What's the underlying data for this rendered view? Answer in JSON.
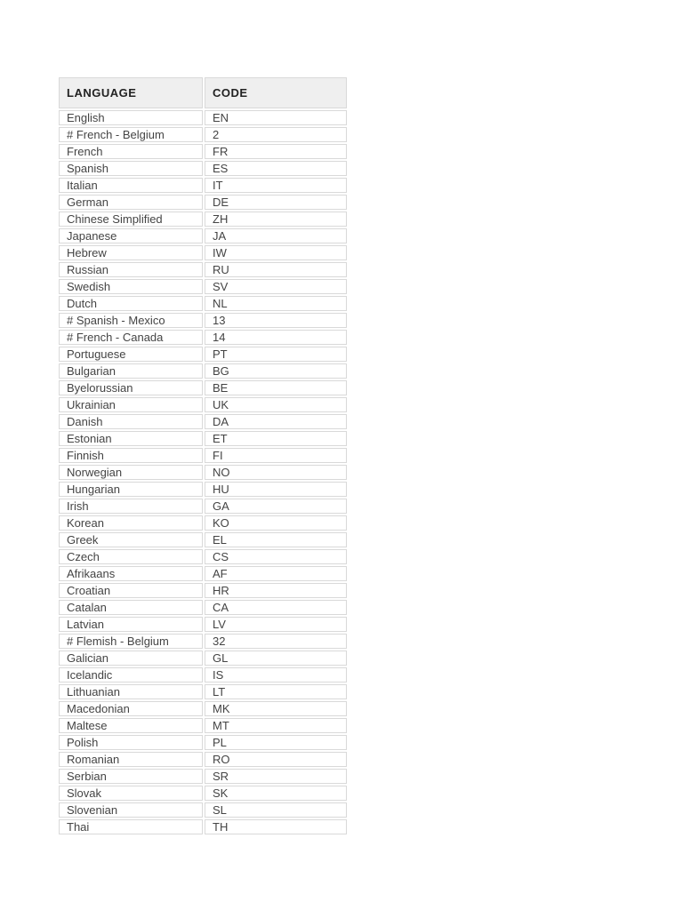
{
  "page": {
    "background": "#ffffff"
  },
  "colors": {
    "header_bg": "#efefef",
    "border": "#d9d9d9",
    "header_text": "#222222",
    "cell_text": "#444444"
  },
  "table": {
    "columns": [
      "LANGUAGE",
      "CODE"
    ],
    "rows": [
      [
        "English",
        "EN"
      ],
      [
        "# French - Belgium",
        "2"
      ],
      [
        "French",
        "FR"
      ],
      [
        "Spanish",
        "ES"
      ],
      [
        "Italian",
        "IT"
      ],
      [
        "German",
        "DE"
      ],
      [
        "Chinese Simplified",
        "ZH"
      ],
      [
        "Japanese",
        "JA"
      ],
      [
        "Hebrew",
        "IW"
      ],
      [
        "Russian",
        "RU"
      ],
      [
        "Swedish",
        "SV"
      ],
      [
        "Dutch",
        "NL"
      ],
      [
        "# Spanish - Mexico",
        "13"
      ],
      [
        "# French - Canada",
        "14"
      ],
      [
        "Portuguese",
        "PT"
      ],
      [
        "Bulgarian",
        "BG"
      ],
      [
        "Byelorussian",
        "BE"
      ],
      [
        "Ukrainian",
        "UK"
      ],
      [
        "Danish",
        "DA"
      ],
      [
        "Estonian",
        "ET"
      ],
      [
        "Finnish",
        "FI"
      ],
      [
        "Norwegian",
        "NO"
      ],
      [
        "Hungarian",
        "HU"
      ],
      [
        "Irish",
        "GA"
      ],
      [
        "Korean",
        "KO"
      ],
      [
        "Greek",
        "EL"
      ],
      [
        "Czech",
        "CS"
      ],
      [
        "Afrikaans",
        "AF"
      ],
      [
        "Croatian",
        "HR"
      ],
      [
        "Catalan",
        "CA"
      ],
      [
        "Latvian",
        "LV"
      ],
      [
        "# Flemish - Belgium",
        "32"
      ],
      [
        "Galician",
        "GL"
      ],
      [
        "Icelandic",
        "IS"
      ],
      [
        "Lithuanian",
        "LT"
      ],
      [
        "Macedonian",
        "MK"
      ],
      [
        "Maltese",
        "MT"
      ],
      [
        "Polish",
        "PL"
      ],
      [
        "Romanian",
        "RO"
      ],
      [
        "Serbian",
        "SR"
      ],
      [
        "Slovak",
        "SK"
      ],
      [
        "Slovenian",
        "SL"
      ],
      [
        "Thai",
        "TH"
      ]
    ]
  }
}
